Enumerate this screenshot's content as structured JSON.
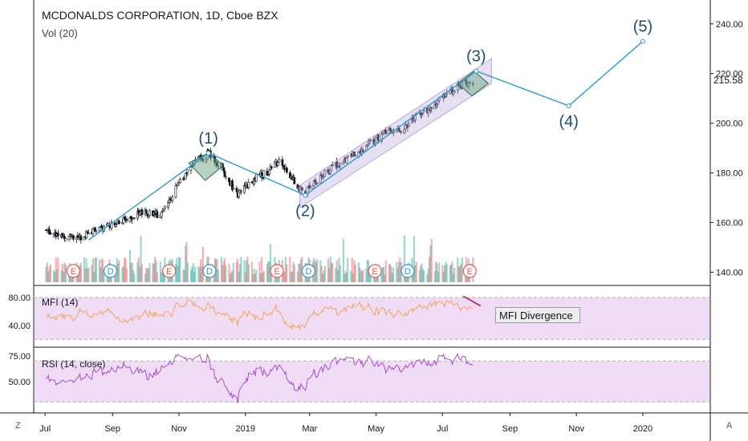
{
  "header": {
    "title": "MCDONALDS CORPORATION, 1D, Cboe BZX",
    "volume_label": "Vol (20)"
  },
  "corner_left": "Z",
  "corner_right": "A",
  "annotations": {
    "mfi_callout": "MFI Divergence",
    "last_price": "215.58"
  },
  "chart_data": [
    {
      "type": "candlestick",
      "pane": "price",
      "x_axis_ticks": [
        "Jul",
        "Sep",
        "Nov",
        "2019",
        "Mar",
        "May",
        "Jul",
        "Sep",
        "Nov",
        "2020"
      ],
      "y_axis_ticks": [
        "140.00",
        "160.00",
        "180.00",
        "200.00",
        "220.00",
        "240.00"
      ],
      "ylim": [
        135,
        248
      ],
      "approx_close_path": [
        [
          "2018-07-02",
          157
        ],
        [
          "2018-07-16",
          155
        ],
        [
          "2018-08-01",
          154
        ],
        [
          "2018-08-15",
          157
        ],
        [
          "2018-09-01",
          160
        ],
        [
          "2018-09-15",
          162
        ],
        [
          "2018-10-01",
          164
        ],
        [
          "2018-10-15",
          163
        ],
        [
          "2018-11-01",
          176
        ],
        [
          "2018-11-15",
          184
        ],
        [
          "2018-11-28",
          188
        ],
        [
          "2018-12-10",
          182
        ],
        [
          "2018-12-24",
          171
        ],
        [
          "2019-01-07",
          177
        ],
        [
          "2019-01-20",
          180
        ],
        [
          "2019-02-01",
          185
        ],
        [
          "2019-02-15",
          176
        ],
        [
          "2019-02-25",
          172
        ],
        [
          "2019-03-10",
          178
        ],
        [
          "2019-03-25",
          183
        ],
        [
          "2019-04-10",
          187
        ],
        [
          "2019-04-25",
          192
        ],
        [
          "2019-05-10",
          196
        ],
        [
          "2019-05-25",
          197
        ],
        [
          "2019-06-05",
          203
        ],
        [
          "2019-06-20",
          206
        ],
        [
          "2019-07-05",
          212
        ],
        [
          "2019-07-20",
          216
        ],
        [
          "2019-07-29",
          215.58
        ]
      ],
      "elliott_waves": [
        {
          "label": "(1)",
          "date": "2018-11-28",
          "value": 188
        },
        {
          "label": "(2)",
          "date": "2019-02-25",
          "value": 171
        },
        {
          "label": "(3)",
          "date": "2019-08-01",
          "value": 221
        },
        {
          "label": "(4)",
          "date": "2019-10-25",
          "value": 207
        },
        {
          "label": "(5)",
          "date": "2020-01-01",
          "value": 233
        }
      ],
      "event_markers": [
        {
          "type": "E",
          "date": "2018-07-27"
        },
        {
          "type": "D",
          "date": "2018-08-30"
        },
        {
          "type": "E",
          "date": "2018-10-23"
        },
        {
          "type": "D",
          "date": "2018-11-29"
        },
        {
          "type": "E",
          "date": "2019-01-30"
        },
        {
          "type": "D",
          "date": "2019-02-28"
        },
        {
          "type": "E",
          "date": "2019-04-30"
        },
        {
          "type": "D",
          "date": "2019-05-30"
        },
        {
          "type": "E",
          "date": "2019-07-26"
        }
      ]
    },
    {
      "type": "line",
      "pane": "indicator",
      "name": "MFI (14)",
      "y_axis_ticks": [
        "40.00",
        "80.00"
      ],
      "ylim": [
        10,
        95
      ]
    },
    {
      "type": "line",
      "pane": "indicator",
      "name": "RSI (14, close)",
      "y_axis_ticks": [
        "50.00",
        "75.00"
      ],
      "ylim": [
        20,
        82
      ]
    }
  ],
  "colors": {
    "up": "#26a69a",
    "down": "#ef5350",
    "trend": "#2a9bd1",
    "channel": "#b9a6dc",
    "mfi": "#f3a55a",
    "rsi": "#a64fd0",
    "band": "#f0dcf5",
    "divergence": "#c2185b"
  }
}
